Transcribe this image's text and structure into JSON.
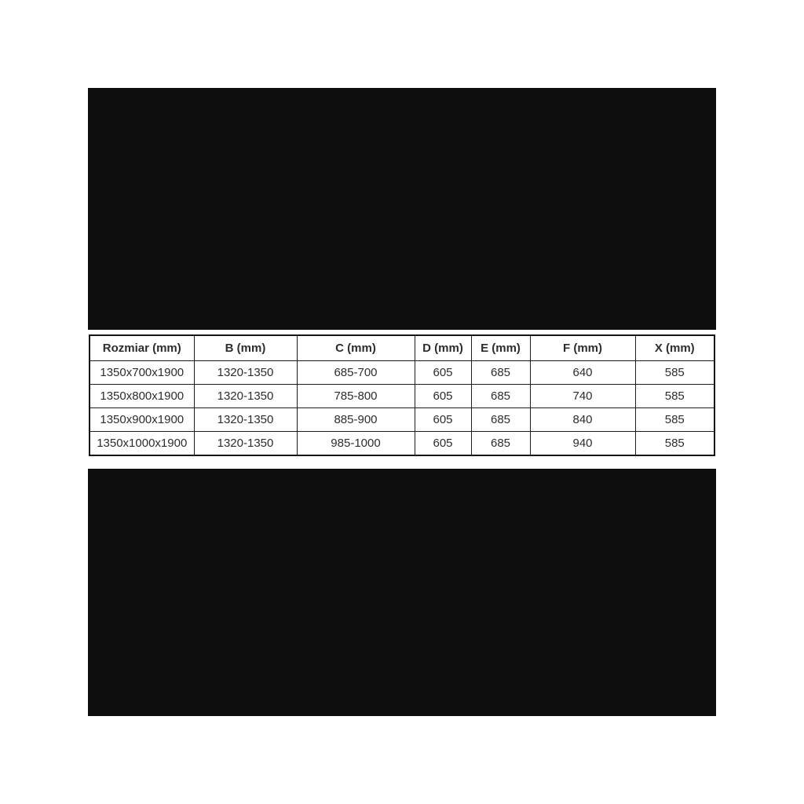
{
  "chart_data": {
    "type": "table",
    "title": "",
    "columns": [
      "Rozmiar (mm)",
      "B (mm)",
      "C (mm)",
      "D (mm)",
      "E (mm)",
      "F (mm)",
      "X (mm)"
    ],
    "rows": [
      [
        "1350x700x1900",
        "1320-1350",
        "685-700",
        "605",
        "685",
        "640",
        "585"
      ],
      [
        "1350x800x1900",
        "1320-1350",
        "785-800",
        "605",
        "685",
        "740",
        "585"
      ],
      [
        "1350x900x1900",
        "1320-1350",
        "885-900",
        "605",
        "685",
        "840",
        "585"
      ],
      [
        "1350x1000x1900",
        "1320-1350",
        "985-1000",
        "605",
        "685",
        "940",
        "585"
      ]
    ]
  },
  "colors": {
    "page_background": "#ffffff",
    "panel_background": "#0e0e0e",
    "table_border": "#1c1c1c",
    "text": "#2d2d2d"
  }
}
